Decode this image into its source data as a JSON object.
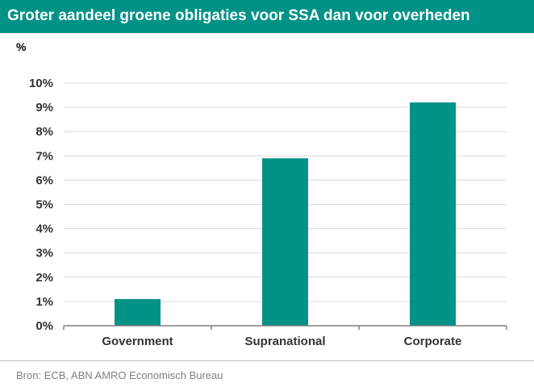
{
  "header": {
    "title": "Groter aandeel groene obligaties voor SSA dan voor overheden"
  },
  "unit_label": "%",
  "source": "Bron: ECB, ABN AMRO Economisch Bureau",
  "colors": {
    "header_bg": "#009286",
    "bar": "#009286",
    "grid": "#d9d9d9",
    "axis": "#7f7f7f"
  },
  "chart_data": {
    "type": "bar",
    "title": "Groter aandeel groene obligaties voor SSA dan voor overheden",
    "xlabel": "",
    "ylabel": "%",
    "categories": [
      "Government",
      "Supranational",
      "Corporate"
    ],
    "values": [
      1.1,
      6.9,
      9.2
    ],
    "ylim": [
      0,
      10
    ],
    "yticks": [
      "0%",
      "1%",
      "2%",
      "3%",
      "4%",
      "5%",
      "6%",
      "7%",
      "8%",
      "9%",
      "10%"
    ],
    "grid": true,
    "legend": "none"
  }
}
